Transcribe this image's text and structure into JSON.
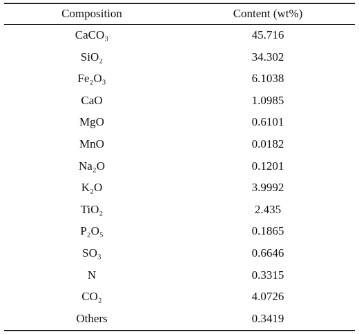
{
  "table": {
    "header": [
      "Composition",
      "Content (wt%)"
    ],
    "rows": [
      [
        "CaCO₃",
        45.716
      ],
      [
        "SiO₂",
        34.302
      ],
      [
        "Fe₂O₃",
        6.1038
      ],
      [
        "CaO",
        1.0985
      ],
      [
        "MgO",
        0.6101
      ],
      [
        "MnO",
        0.0182
      ],
      [
        "Na₂O",
        0.1201
      ],
      [
        "K₂O",
        3.9992
      ],
      [
        "TiO₂",
        2.435
      ],
      [
        "P₂O₅",
        0.1865
      ],
      [
        "SO₃",
        0.6646
      ],
      [
        "N",
        0.3315
      ],
      [
        "CO₂",
        4.0726
      ],
      [
        "Others",
        0.3419
      ]
    ]
  }
}
